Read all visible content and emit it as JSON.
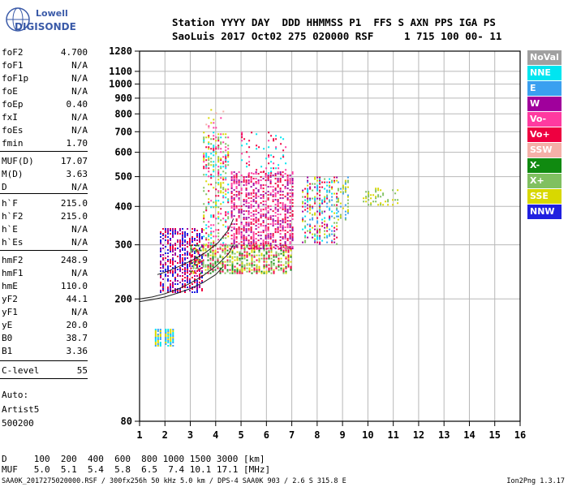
{
  "logo": {
    "line1": "Lowell",
    "line2": "DIGISONDE"
  },
  "header": {
    "row1": "Station YYYY DAY  DDD HHMMSS P1  FFS S AXN PPS IGA PS",
    "row2": "SaoLuis 2017 Oct02 275 020000 RSF     1 715 100 00- 11"
  },
  "params": [
    {
      "name": "foF2",
      "value": "4.700"
    },
    {
      "name": "foF1",
      "value": "N/A"
    },
    {
      "name": "foF1p",
      "value": "N/A"
    },
    {
      "name": "foE",
      "value": "N/A"
    },
    {
      "name": "foEp",
      "value": "0.40"
    },
    {
      "name": "fxI",
      "value": "N/A"
    },
    {
      "name": "foEs",
      "value": "N/A"
    },
    {
      "name": "fmin",
      "value": "1.70"
    },
    {
      "name": "MUF(D)",
      "value": "17.07"
    },
    {
      "name": "M(D)",
      "value": "3.63"
    },
    {
      "name": "D",
      "value": "N/A"
    },
    {
      "name": "h`F",
      "value": "215.0"
    },
    {
      "name": "h`F2",
      "value": "215.0"
    },
    {
      "name": "h`E",
      "value": "N/A"
    },
    {
      "name": "h`Es",
      "value": "N/A"
    },
    {
      "name": "hmF2",
      "value": "248.9"
    },
    {
      "name": "hmF1",
      "value": "N/A"
    },
    {
      "name": "hmE",
      "value": "110.0"
    },
    {
      "name": "yF2",
      "value": "44.1"
    },
    {
      "name": "yF1",
      "value": "N/A"
    },
    {
      "name": "yE",
      "value": "20.0"
    },
    {
      "name": "B0",
      "value": "38.7"
    },
    {
      "name": "B1",
      "value": "3.36"
    },
    {
      "name": "C-level",
      "value": "55"
    }
  ],
  "auto": {
    "line1": "Auto:",
    "line2": "Artist5",
    "line3": "500200"
  },
  "legend": [
    {
      "label": "NoVal",
      "bg": "#a0a0a0",
      "fg": "#ffffff"
    },
    {
      "label": "NNE",
      "bg": "#00e5f0",
      "fg": "#ffffff"
    },
    {
      "label": "E",
      "bg": "#3aa0f0",
      "fg": "#ffffff"
    },
    {
      "label": "W",
      "bg": "#a0009c",
      "fg": "#ffffff"
    },
    {
      "label": "Vo-",
      "bg": "#ff3aa0",
      "fg": "#ffffff"
    },
    {
      "label": "Vo+",
      "bg": "#ee0040",
      "fg": "#ffffff"
    },
    {
      "label": "SSW",
      "bg": "#f5b0a8",
      "fg": "#ffffff"
    },
    {
      "label": "X-",
      "bg": "#108a10",
      "fg": "#ffffff"
    },
    {
      "label": "X+",
      "bg": "#80c060",
      "fg": "#ffffff"
    },
    {
      "label": "SSE",
      "bg": "#d8d800",
      "fg": "#ffffff"
    },
    {
      "label": "NNW",
      "bg": "#2020e0",
      "fg": "#ffffff"
    }
  ],
  "footer": {
    "d_row": "D     100  200  400  600  800 1000 1500 3000 [km]",
    "muf_row": "MUF   5.0  5.1  5.4  5.8  6.5  7.4 10.1 17.1 [MHz]",
    "file_info": "SAA0K_2017275020000.RSF / 300fx256h 50 kHz 5.0 km / DPS-4 SAA0K 903 / 2.6 S 315.8 E",
    "version": "Ion2Png 1.3.17"
  },
  "chart_data": {
    "type": "scatter",
    "xlim": [
      1,
      16
    ],
    "x_ticks": [
      "1",
      "2",
      "3",
      "4",
      "5",
      "6",
      "7",
      "8",
      "9",
      "10",
      "11",
      "12",
      "13",
      "14",
      "15",
      "16"
    ],
    "y_scale": "log",
    "ylim": [
      80,
      1280
    ],
    "y_ticks": [
      "80",
      "200",
      "300",
      "400",
      "500",
      "600",
      "700",
      "800",
      "900",
      "1000",
      "1100",
      "1280"
    ],
    "grid": true,
    "clusters": [
      {
        "x_range": [
          1.6,
          1.9
        ],
        "y_range": [
          140,
          160
        ],
        "colors": [
          "NNE",
          "E",
          "SSE"
        ],
        "density": 0.9
      },
      {
        "x_range": [
          2.0,
          2.4
        ],
        "y_range": [
          140,
          160
        ],
        "colors": [
          "NNE",
          "E",
          "SSE"
        ],
        "density": 0.9
      },
      {
        "x_range": [
          1.8,
          3.5
        ],
        "y_range": [
          210,
          340
        ],
        "colors": [
          "NNW",
          "Vo+",
          "W"
        ],
        "density": 0.55
      },
      {
        "x_range": [
          3.0,
          7.0
        ],
        "y_range": [
          240,
          300
        ],
        "colors": [
          "X-",
          "X+",
          "SSE",
          "Vo+"
        ],
        "density": 0.6
      },
      {
        "x_range": [
          3.5,
          4.6
        ],
        "y_range": [
          300,
          700
        ],
        "colors": [
          "Vo-",
          "SSE",
          "NNE",
          "Vo+",
          "X+"
        ],
        "density": 0.35
      },
      {
        "x_range": [
          3.6,
          4.4
        ],
        "y_range": [
          700,
          860
        ],
        "colors": [
          "Vo-",
          "SSW",
          "SSE"
        ],
        "density": 0.12
      },
      {
        "x_range": [
          4.6,
          7.1
        ],
        "y_range": [
          290,
          520
        ],
        "colors": [
          "Vo+",
          "Vo-",
          "W"
        ],
        "density": 0.5
      },
      {
        "x_range": [
          5.0,
          6.8
        ],
        "y_range": [
          500,
          700
        ],
        "colors": [
          "Vo+",
          "Vo-",
          "NNE"
        ],
        "density": 0.12
      },
      {
        "x_range": [
          7.4,
          8.8
        ],
        "y_range": [
          300,
          500
        ],
        "colors": [
          "NNE",
          "E",
          "Vo+",
          "X+",
          "SSE",
          "W"
        ],
        "density": 0.35
      },
      {
        "x_range": [
          8.8,
          9.3
        ],
        "y_range": [
          360,
          500
        ],
        "colors": [
          "SSE",
          "X+",
          "E"
        ],
        "density": 0.3
      },
      {
        "x_range": [
          9.8,
          11.2
        ],
        "y_range": [
          400,
          460
        ],
        "colors": [
          "SSE",
          "X+"
        ],
        "density": 0.35
      }
    ],
    "curves": [
      {
        "name": "",
        "x": [
          1,
          1.5,
          2,
          2.5,
          3,
          3.5,
          4,
          4.5,
          4.7
        ],
        "y": [
          200,
          203,
          208,
          215,
          225,
          238,
          255,
          280,
          300
        ]
      },
      {
        "name": "",
        "x": [
          1,
          1.5,
          2,
          2.5,
          3,
          3.5,
          4,
          4.3
        ],
        "y": [
          196,
          199,
          203,
          209,
          216,
          226,
          240,
          255
        ]
      },
      {
        "name": "",
        "x": [
          1.7,
          2.1,
          2.6,
          3.1,
          3.6,
          4.1,
          4.5,
          4.7
        ],
        "y": [
          240,
          246,
          256,
          268,
          283,
          305,
          335,
          365
        ]
      }
    ]
  }
}
